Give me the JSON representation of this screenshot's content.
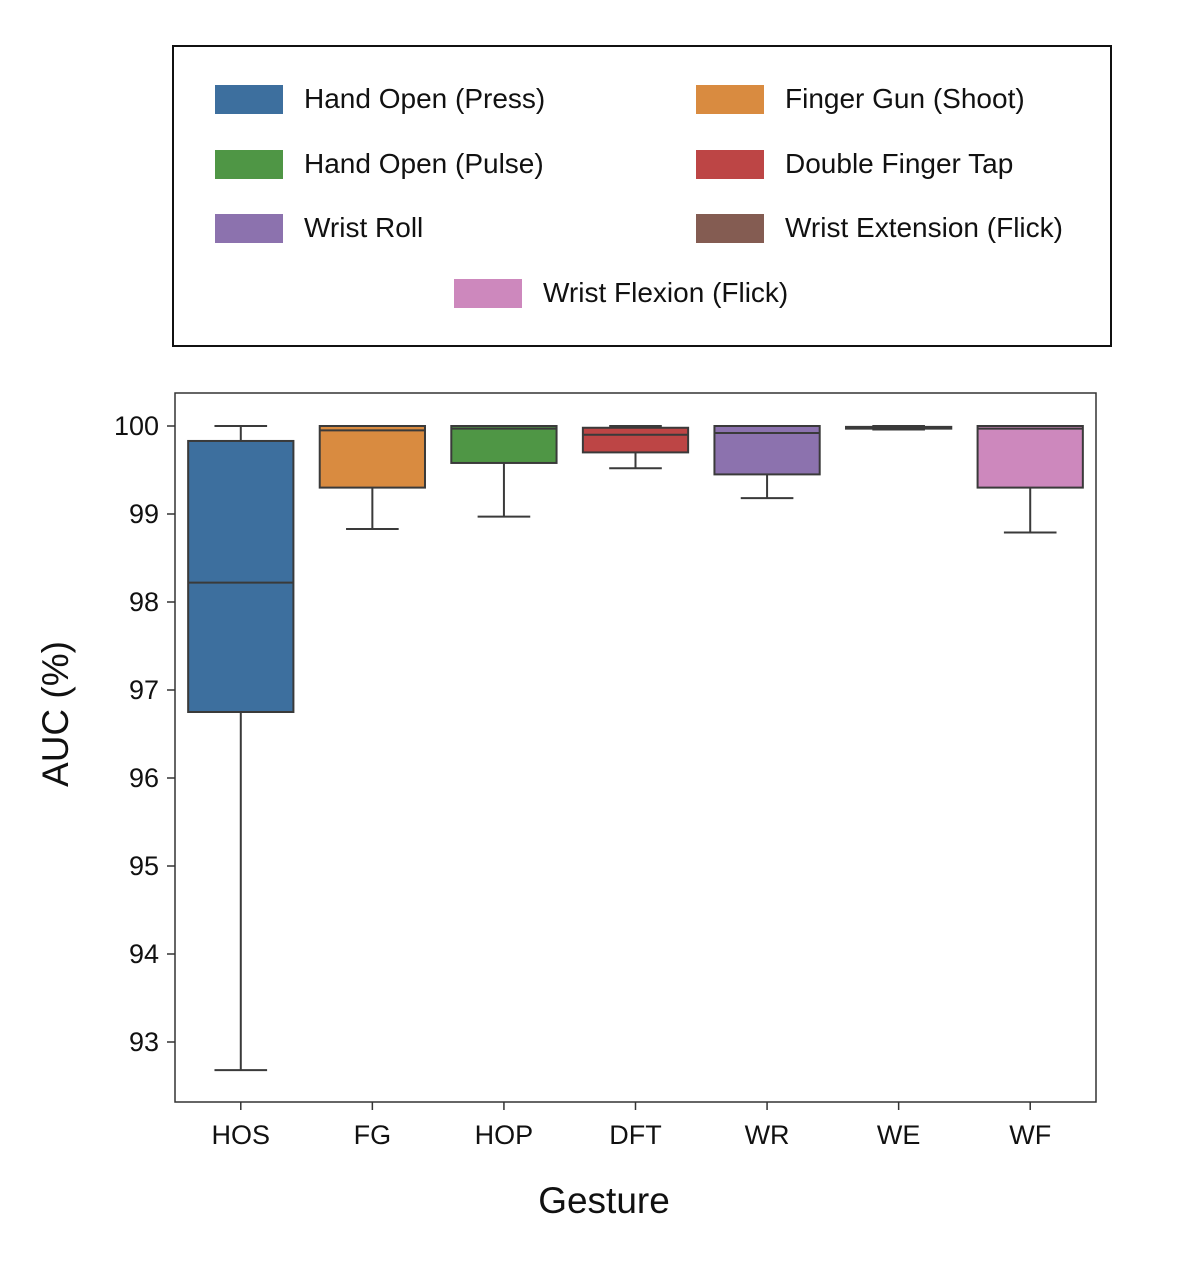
{
  "chart_data": {
    "type": "box",
    "xlabel": "Gesture",
    "ylabel": "AUC (%)",
    "ylim": [
      92.4,
      100.4
    ],
    "yticks": [
      93,
      94,
      95,
      96,
      97,
      98,
      99,
      100
    ],
    "grid": false,
    "legend_position": "top",
    "categories": [
      "HOS",
      "FG",
      "HOP",
      "DFT",
      "WR",
      "WE",
      "WF"
    ],
    "legend": [
      {
        "label": "Hand Open (Press)",
        "color": "#3d6f9e"
      },
      {
        "label": "Finger Gun (Shoot)",
        "color": "#d98b40"
      },
      {
        "label": "Hand Open (Pulse)",
        "color": "#4f9645"
      },
      {
        "label": "Double Finger Tap",
        "color": "#bd4545"
      },
      {
        "label": "Wrist Roll",
        "color": "#8c72ae"
      },
      {
        "label": "Wrist Extension (Flick)",
        "color": "#845c52"
      },
      {
        "label": "Wrist Flexion (Flick)",
        "color": "#cd88bd"
      }
    ],
    "series": [
      {
        "category": "HOS",
        "color": "#3d6f9e",
        "whisker_low": 92.68,
        "q1": 96.75,
        "median": 98.22,
        "q3": 99.83,
        "whisker_high": 100.0
      },
      {
        "category": "FG",
        "color": "#d98b40",
        "whisker_low": 98.83,
        "q1": 99.3,
        "median": 99.95,
        "q3": 100.0,
        "whisker_high": 100.0
      },
      {
        "category": "HOP",
        "color": "#4f9645",
        "whisker_low": 98.97,
        "q1": 99.58,
        "median": 99.97,
        "q3": 100.0,
        "whisker_high": 100.0
      },
      {
        "category": "DFT",
        "color": "#bd4545",
        "whisker_low": 99.52,
        "q1": 99.7,
        "median": 99.9,
        "q3": 99.98,
        "whisker_high": 100.0
      },
      {
        "category": "WR",
        "color": "#8c72ae",
        "whisker_low": 99.18,
        "q1": 99.45,
        "median": 99.92,
        "q3": 100.0,
        "whisker_high": 100.0
      },
      {
        "category": "WE",
        "color": "#845c52",
        "whisker_low": 99.96,
        "q1": 99.97,
        "median": 99.98,
        "q3": 99.99,
        "whisker_high": 100.0
      },
      {
        "category": "WF",
        "color": "#cd88bd",
        "whisker_low": 98.79,
        "q1": 99.3,
        "median": 99.97,
        "q3": 100.0,
        "whisker_high": 100.0
      }
    ]
  }
}
